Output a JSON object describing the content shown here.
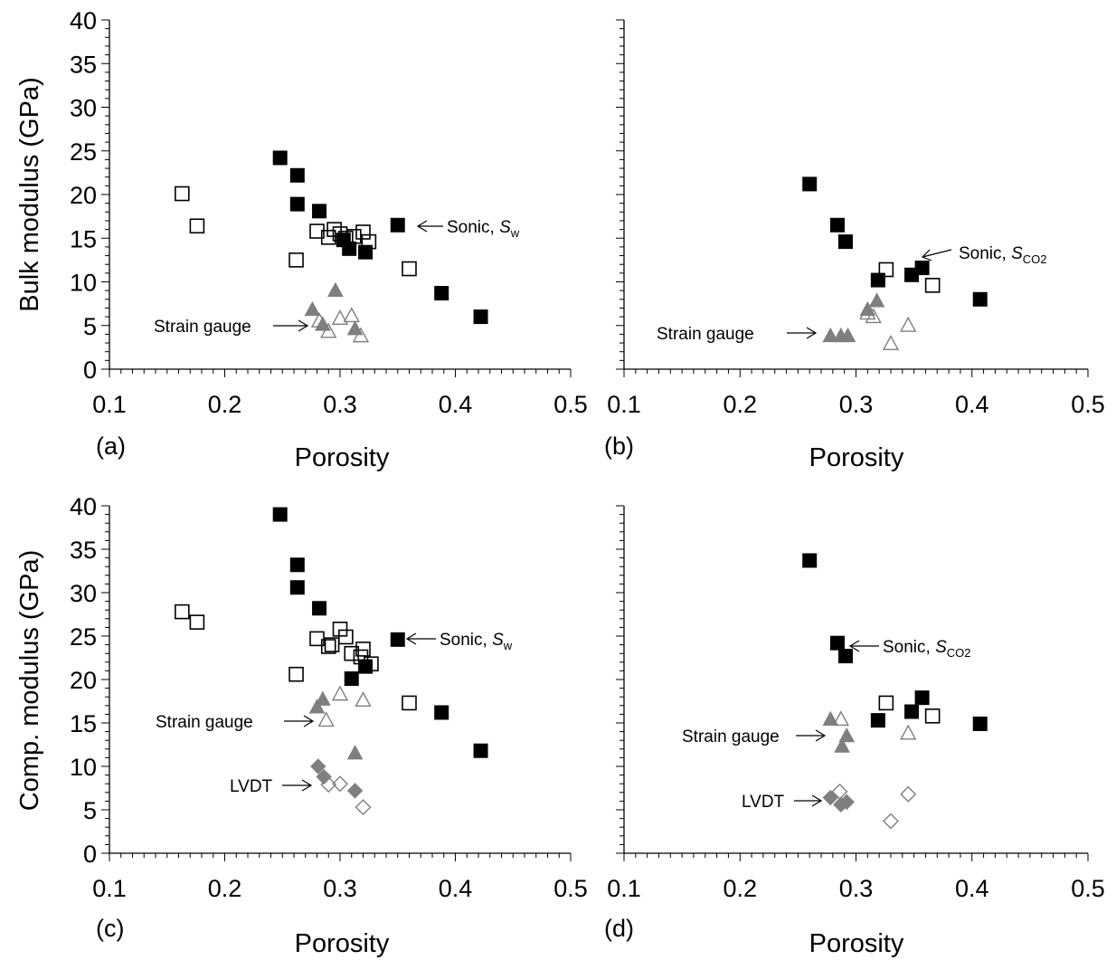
{
  "chart_data": [
    {
      "id": "a",
      "type": "scatter",
      "panel_label": "(a)",
      "xlabel": "Porosity",
      "ylabel": "Bulk modulus (GPa)",
      "xlim": [
        0.1,
        0.5
      ],
      "ylim": [
        0,
        40
      ],
      "xticks": [
        "0.1",
        "0.2",
        "0.3",
        "0.4",
        "0.5"
      ],
      "yticks": [
        "0",
        "5",
        "10",
        "15",
        "20",
        "25",
        "30",
        "35",
        "40"
      ],
      "series": [
        {
          "marker": "square-filled",
          "points": [
            [
              0.248,
              24.2
            ],
            [
              0.263,
              22.2
            ],
            [
              0.263,
              18.9
            ],
            [
              0.282,
              18.1
            ],
            [
              0.35,
              16.5
            ],
            [
              0.303,
              14.8
            ],
            [
              0.308,
              13.8
            ],
            [
              0.322,
              13.4
            ],
            [
              0.388,
              8.7
            ],
            [
              0.422,
              6.0
            ]
          ]
        },
        {
          "marker": "square-open",
          "points": [
            [
              0.163,
              20.1
            ],
            [
              0.176,
              16.4
            ],
            [
              0.262,
              12.5
            ],
            [
              0.28,
              15.8
            ],
            [
              0.29,
              15.1
            ],
            [
              0.295,
              16.0
            ],
            [
              0.3,
              15.5
            ],
            [
              0.305,
              15.0
            ],
            [
              0.312,
              15.2
            ],
            [
              0.32,
              15.7
            ],
            [
              0.325,
              14.6
            ],
            [
              0.36,
              11.5
            ]
          ]
        },
        {
          "marker": "triangle-filled",
          "points": [
            [
              0.276,
              6.8
            ],
            [
              0.285,
              5.1
            ],
            [
              0.296,
              9.0
            ],
            [
              0.313,
              4.6
            ]
          ]
        },
        {
          "marker": "triangle-open",
          "points": [
            [
              0.282,
              5.5
            ],
            [
              0.29,
              4.3
            ],
            [
              0.3,
              5.8
            ],
            [
              0.31,
              6.1
            ],
            [
              0.318,
              3.8
            ]
          ]
        }
      ],
      "annotations": [
        {
          "text": "Sonic, ",
          "italic_text": "S",
          "sub": "w"
        },
        {
          "text": "Strain gauge"
        }
      ]
    },
    {
      "id": "b",
      "type": "scatter",
      "panel_label": "(b)",
      "xlabel": "Porosity",
      "ylabel": "",
      "xlim": [
        0.1,
        0.5
      ],
      "ylim": [
        0,
        40
      ],
      "xticks": [
        "0.1",
        "0.2",
        "0.3",
        "0.4",
        "0.5"
      ],
      "yticks": [],
      "series": [
        {
          "marker": "square-filled",
          "points": [
            [
              0.26,
              21.2
            ],
            [
              0.284,
              16.5
            ],
            [
              0.291,
              14.6
            ],
            [
              0.319,
              10.2
            ],
            [
              0.348,
              10.8
            ],
            [
              0.357,
              11.6
            ],
            [
              0.407,
              8.0
            ]
          ]
        },
        {
          "marker": "square-open",
          "points": [
            [
              0.326,
              11.4
            ],
            [
              0.366,
              9.6
            ]
          ]
        },
        {
          "marker": "triangle-filled",
          "points": [
            [
              0.278,
              3.8
            ],
            [
              0.287,
              3.8
            ],
            [
              0.293,
              3.8
            ],
            [
              0.31,
              6.8
            ],
            [
              0.318,
              7.8
            ]
          ]
        },
        {
          "marker": "triangle-open",
          "points": [
            [
              0.31,
              6.4
            ],
            [
              0.315,
              6.0
            ],
            [
              0.33,
              2.9
            ],
            [
              0.345,
              5.0
            ]
          ]
        }
      ],
      "annotations": [
        {
          "text": "Sonic, ",
          "italic_text": "S",
          "sub": "CO2"
        },
        {
          "text": "Strain gauge"
        }
      ]
    },
    {
      "id": "c",
      "type": "scatter",
      "panel_label": "(c)",
      "xlabel": "Porosity",
      "ylabel": "Comp. modulus (GPa)",
      "xlim": [
        0.1,
        0.5
      ],
      "ylim": [
        0,
        40
      ],
      "xticks": [
        "0.1",
        "0.2",
        "0.3",
        "0.4",
        "0.5"
      ],
      "yticks": [
        "0",
        "5",
        "10",
        "15",
        "20",
        "25",
        "30",
        "35",
        "40"
      ],
      "series": [
        {
          "marker": "square-filled",
          "points": [
            [
              0.248,
              39.0
            ],
            [
              0.263,
              33.2
            ],
            [
              0.263,
              30.6
            ],
            [
              0.282,
              28.2
            ],
            [
              0.35,
              24.6
            ],
            [
              0.322,
              21.5
            ],
            [
              0.31,
              20.1
            ],
            [
              0.388,
              16.2
            ],
            [
              0.422,
              11.8
            ]
          ]
        },
        {
          "marker": "square-open",
          "points": [
            [
              0.163,
              27.8
            ],
            [
              0.176,
              26.6
            ],
            [
              0.262,
              20.6
            ],
            [
              0.28,
              24.7
            ],
            [
              0.29,
              23.8
            ],
            [
              0.293,
              24.0
            ],
            [
              0.3,
              25.8
            ],
            [
              0.305,
              24.9
            ],
            [
              0.31,
              23.0
            ],
            [
              0.318,
              22.6
            ],
            [
              0.32,
              23.5
            ],
            [
              0.327,
              21.8
            ],
            [
              0.36,
              17.3
            ]
          ]
        },
        {
          "marker": "triangle-filled",
          "points": [
            [
              0.28,
              16.8
            ],
            [
              0.285,
              17.7
            ],
            [
              0.313,
              11.5
            ]
          ]
        },
        {
          "marker": "triangle-open",
          "points": [
            [
              0.288,
              15.3
            ],
            [
              0.3,
              18.3
            ],
            [
              0.32,
              17.6
            ]
          ]
        },
        {
          "marker": "diamond-filled",
          "points": [
            [
              0.281,
              10.0
            ],
            [
              0.286,
              8.8
            ],
            [
              0.313,
              7.2
            ]
          ]
        },
        {
          "marker": "diamond-open",
          "points": [
            [
              0.29,
              7.9
            ],
            [
              0.3,
              8.0
            ],
            [
              0.32,
              5.3
            ]
          ]
        }
      ],
      "annotations": [
        {
          "text": "Sonic, ",
          "italic_text": "S",
          "sub": "w"
        },
        {
          "text": "Strain gauge"
        },
        {
          "text": "LVDT"
        }
      ]
    },
    {
      "id": "d",
      "type": "scatter",
      "panel_label": "(d)",
      "xlabel": "Porosity",
      "ylabel": "",
      "xlim": [
        0.1,
        0.5
      ],
      "ylim": [
        0,
        40
      ],
      "xticks": [
        "0.1",
        "0.2",
        "0.3",
        "0.4",
        "0.5"
      ],
      "yticks": [],
      "series": [
        {
          "marker": "square-filled",
          "points": [
            [
              0.26,
              33.7
            ],
            [
              0.284,
              24.2
            ],
            [
              0.291,
              22.7
            ],
            [
              0.319,
              15.3
            ],
            [
              0.348,
              16.3
            ],
            [
              0.357,
              17.9
            ],
            [
              0.407,
              14.9
            ]
          ]
        },
        {
          "marker": "square-open",
          "points": [
            [
              0.326,
              17.3
            ],
            [
              0.366,
              15.8
            ]
          ]
        },
        {
          "marker": "triangle-filled",
          "points": [
            [
              0.278,
              15.4
            ],
            [
              0.288,
              12.3
            ],
            [
              0.292,
              13.5
            ]
          ]
        },
        {
          "marker": "triangle-open",
          "points": [
            [
              0.287,
              15.4
            ],
            [
              0.345,
              13.8
            ]
          ]
        },
        {
          "marker": "diamond-filled",
          "points": [
            [
              0.278,
              6.4
            ],
            [
              0.287,
              5.6
            ],
            [
              0.292,
              5.9
            ]
          ]
        },
        {
          "marker": "diamond-open",
          "points": [
            [
              0.286,
              7.1
            ],
            [
              0.33,
              3.7
            ],
            [
              0.345,
              6.8
            ]
          ]
        }
      ],
      "annotations": [
        {
          "text": "Sonic, ",
          "italic_text": "S",
          "sub": "CO2"
        },
        {
          "text": "Strain gauge"
        },
        {
          "text": "LVDT"
        }
      ]
    }
  ]
}
